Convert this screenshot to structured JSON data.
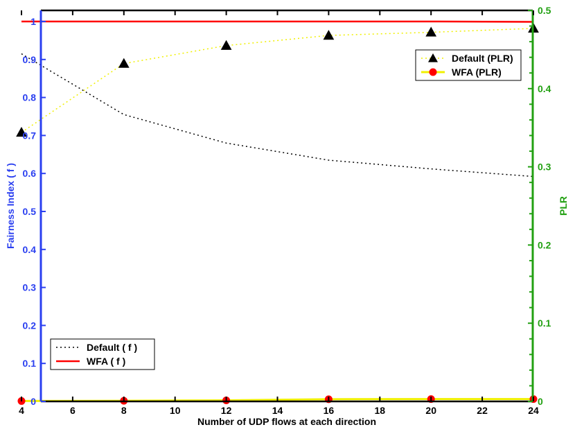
{
  "chart_data": {
    "type": "line",
    "title": "",
    "xlabel": "Number of UDP flows at each direction",
    "ylabel_left": "Fairness Index ( f )",
    "ylabel_right": "PLR",
    "xlim": [
      4,
      24
    ],
    "ylim_left": [
      0,
      1
    ],
    "ylim_right": [
      0,
      0.5
    ],
    "xticks": [
      "4",
      "6",
      "8",
      "10",
      "12",
      "14",
      "16",
      "18",
      "20",
      "22",
      "24"
    ],
    "yticks_left": [
      "0",
      "0.1",
      "0.2",
      "0.3",
      "0.4",
      "0.5",
      "0.6",
      "0.7",
      "0.8",
      "0.9",
      "1"
    ],
    "yticks_right": [
      "0",
      "0.1",
      "0.2",
      "0.3",
      "0.4",
      "0.5"
    ],
    "grid": false,
    "colors": {
      "left_axis": "#2a3ff0",
      "right_axis": "#22a012",
      "default_f": "#000000",
      "wfa_f": "#ff0000",
      "default_plr_line": "#f0f000",
      "default_plr_marker": "#000000",
      "wfa_plr_line": "#f0f000",
      "wfa_plr_marker": "#ff0000"
    },
    "series": [
      {
        "name": "Default ( f )",
        "axis": "left",
        "style": "dotted",
        "marker": "none",
        "x": [
          4,
          8,
          12,
          16,
          20,
          24
        ],
        "values": [
          0.915,
          0.755,
          0.68,
          0.635,
          0.612,
          0.592
        ]
      },
      {
        "name": "WFA ( f )",
        "axis": "left",
        "style": "solid",
        "marker": "none",
        "x": [
          4,
          8,
          12,
          16,
          20,
          24
        ],
        "values": [
          1.0,
          1.0,
          1.0,
          1.0,
          1.0,
          0.999
        ]
      },
      {
        "name": "Default (PLR)",
        "axis": "right",
        "style": "dotted",
        "marker": "triangle",
        "x": [
          4,
          8,
          12,
          16,
          20,
          24
        ],
        "values": [
          0.344,
          0.432,
          0.455,
          0.468,
          0.472,
          0.477
        ]
      },
      {
        "name": "WFA (PLR)",
        "axis": "right",
        "style": "solid",
        "marker": "circle",
        "x": [
          4,
          8,
          12,
          16,
          20,
          24
        ],
        "values": [
          0.0005,
          0.0008,
          0.0013,
          0.0028,
          0.003,
          0.003
        ]
      }
    ],
    "legends": [
      {
        "position": "top-right",
        "entries": [
          "Default (PLR)",
          "WFA (PLR)"
        ]
      },
      {
        "position": "bottom-left",
        "entries": [
          "Default ( f )",
          "WFA ( f )"
        ]
      }
    ]
  }
}
